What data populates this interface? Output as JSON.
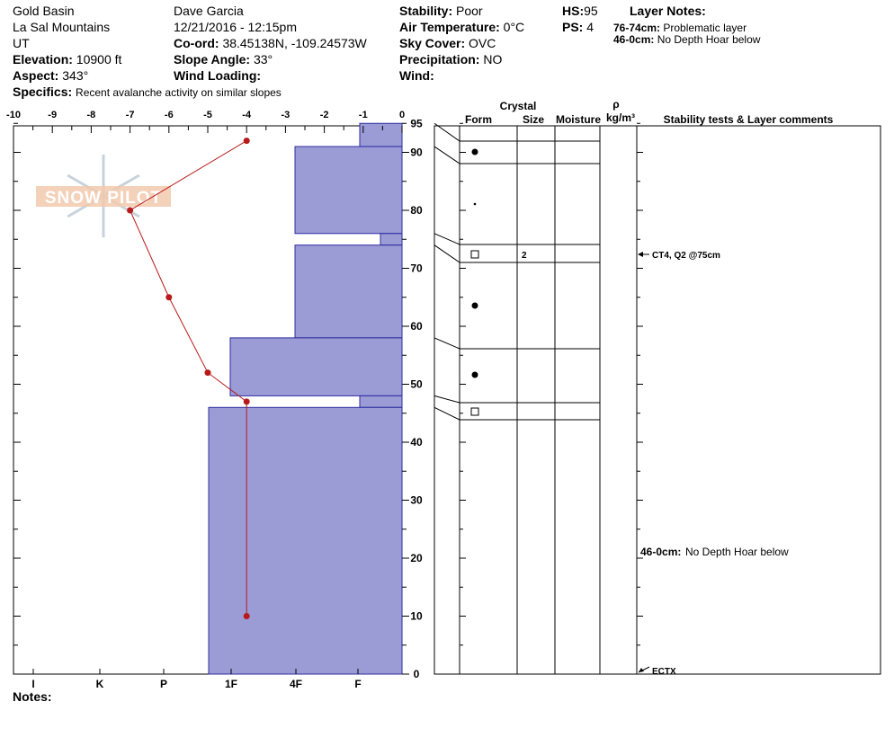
{
  "header": {
    "location": "Gold Basin",
    "range": "La Sal Mountains",
    "state": "UT",
    "elevation_label": "Elevation:",
    "elevation": "10900 ft",
    "aspect_label": "Aspect:",
    "aspect": "343°",
    "specifics_label": "Specifics:",
    "specifics": "Recent avalanche activity on similar slopes",
    "observer": "Dave Garcia",
    "datetime": "12/21/2016 - 12:15pm",
    "coord_label": "Co-ord:",
    "coord": "38.45138N, -109.24573W",
    "slope_label": "Slope Angle:",
    "slope": "33°",
    "wind_loading_label": "Wind Loading:",
    "wind_loading": "",
    "stability_label": "Stability:",
    "stability": "Poor",
    "air_temp_label": "Air Temperature:",
    "air_temp": "0°C",
    "sky_label": "Sky Cover:",
    "sky": "OVC",
    "precip_label": "Precipitation:",
    "precip": "NO",
    "wind_label": "Wind:",
    "wind": "",
    "hs_label": "HS:",
    "hs": "95",
    "ps_label": "PS:",
    "ps": "4",
    "layer_notes_title": "Layer Notes:",
    "layer_notes": [
      {
        "range": "76-74cm:",
        "text": "Problematic layer"
      },
      {
        "range": "46-0cm:",
        "text": "No Depth Hoar below"
      }
    ]
  },
  "logo_text": "SNOW PILOT",
  "notes_label": "Notes:",
  "chart_data": {
    "type": "snow-profile",
    "temperature_axis": {
      "ticks": [
        "-10",
        "-9",
        "-8",
        "-7",
        "-6",
        "-5",
        "-4",
        "-3",
        "-2",
        "-1",
        "0"
      ],
      "range": [
        -10,
        0
      ]
    },
    "depth_axis": {
      "ticks": [
        "95",
        "90",
        "80",
        "70",
        "60",
        "50",
        "40",
        "30",
        "20",
        "10",
        "0"
      ],
      "range": [
        0,
        96
      ]
    },
    "hardness_axis": {
      "ticks": [
        "I",
        "K",
        "P",
        "1F",
        "4F",
        "F"
      ]
    },
    "temperature_profile": [
      {
        "depth": 92,
        "temp": -4
      },
      {
        "depth": 80,
        "temp": -7
      },
      {
        "depth": 65,
        "temp": -6
      },
      {
        "depth": 52,
        "temp": -5
      },
      {
        "depth": 47,
        "temp": -4
      },
      {
        "depth": 10,
        "temp": -4
      }
    ],
    "layers": [
      {
        "top": 95,
        "bottom": 91,
        "hardness": "F",
        "form": "dot"
      },
      {
        "top": 91,
        "bottom": 76,
        "hardness": "4F",
        "form": "small-dot"
      },
      {
        "top": 76,
        "bottom": 74,
        "hardness": "F-",
        "form": "square",
        "size": "2"
      },
      {
        "top": 74,
        "bottom": 58,
        "hardness": "4F",
        "form": "dot"
      },
      {
        "top": 58,
        "bottom": 48,
        "hardness": "1F",
        "form": "dot"
      },
      {
        "top": 48,
        "bottom": 46,
        "hardness": "F",
        "form": "square"
      },
      {
        "top": 46,
        "bottom": 0,
        "hardness": "1F+",
        "form": ""
      }
    ],
    "table_headers": {
      "crystal": "Crystal",
      "form": "Form",
      "size": "Size",
      "moisture": "Moisture",
      "rho": "ρ",
      "density_unit": "kg/m³",
      "comments": "Stability tests & Layer comments"
    },
    "comments": [
      {
        "depth": 75,
        "text": "CT4, Q2 @75cm",
        "arrow": true
      },
      {
        "depth": 22,
        "range": "46-0cm:",
        "text": "No Depth Hoar below",
        "arrow": false
      },
      {
        "depth": 0,
        "text": "ECTX",
        "arrow": true
      }
    ],
    "colors": {
      "layer_fill": "#9b9bd6",
      "layer_stroke": "#2c2ca0",
      "temp_line": "#b81a1a"
    }
  }
}
